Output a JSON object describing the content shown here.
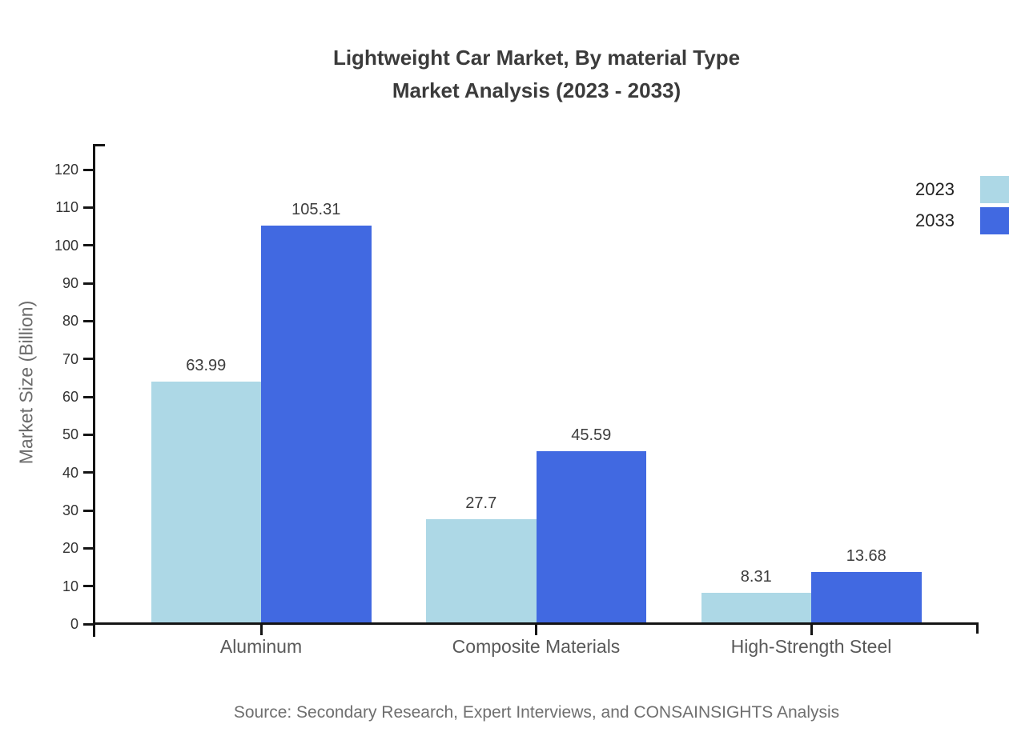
{
  "title": {
    "line1": "Lightweight Car Market, By material Type",
    "line2": "Market Analysis (2023 - 2033)"
  },
  "source": "Source: Secondary Research, Expert Interviews, and CONSAINSIGHTS Analysis",
  "colors": {
    "series_2023": "#ADD8E6",
    "series_2033": "#4169E1",
    "axis": "#141414",
    "title_text": "#3b3b3b",
    "tick_text": "#333333",
    "category_text": "#595959",
    "source_text": "#6f6f6f"
  },
  "chart_data": {
    "type": "bar",
    "title": "Lightweight Car Market, By material Type Market Analysis (2023 - 2033)",
    "categories": [
      "Aluminum",
      "Composite Materials",
      "High-Strength Steel"
    ],
    "series": [
      {
        "name": "2023",
        "color": "#ADD8E6",
        "values": [
          63.99,
          27.7,
          8.31
        ]
      },
      {
        "name": "2033",
        "color": "#4169E1",
        "values": [
          105.31,
          45.59,
          13.68
        ]
      }
    ],
    "value_labels": [
      [
        "63.99",
        "27.7",
        "8.31"
      ],
      [
        "105.31",
        "45.59",
        "13.68"
      ]
    ],
    "xlabel": "",
    "ylabel": "Market Size (Billion)",
    "ylim": [
      0,
      120
    ],
    "ytick_step": 10,
    "ytick_labels": [
      "0",
      "10",
      "20",
      "30",
      "40",
      "50",
      "60",
      "70",
      "80",
      "90",
      "100",
      "110",
      "120"
    ],
    "grid": false,
    "legend_position": "top-right",
    "data_labels": true
  }
}
